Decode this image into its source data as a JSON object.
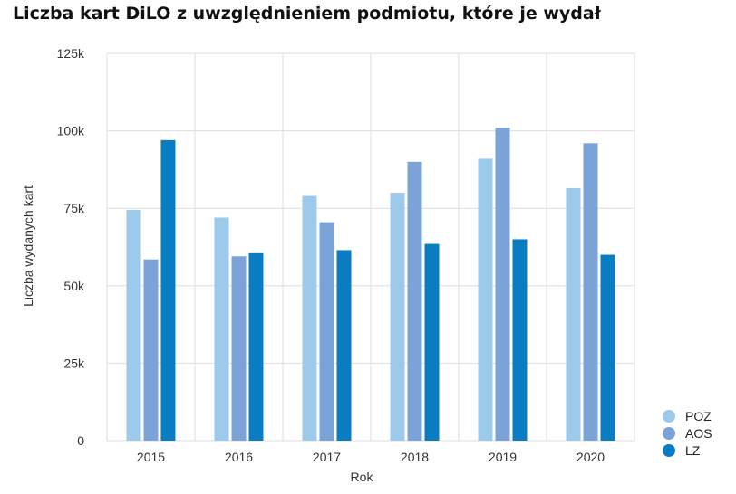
{
  "chart_data": {
    "type": "bar",
    "title": "Liczba kart DiLO z uwzględnieniem podmiotu, które je wydał",
    "xlabel": "Rok",
    "ylabel": "Liczba wydanych kart",
    "categories": [
      "2015",
      "2016",
      "2017",
      "2018",
      "2019",
      "2020"
    ],
    "ylim": [
      0,
      125000
    ],
    "yticks": [
      0,
      25000,
      50000,
      75000,
      100000,
      125000
    ],
    "ytick_labels": [
      "0",
      "25k",
      "50k",
      "75k",
      "100k",
      "125k"
    ],
    "grid": "vertical and horizontal",
    "legend_position": "bottom-right",
    "series": [
      {
        "name": "POZ",
        "color": "#9dcaea",
        "values": [
          74500,
          72000,
          79000,
          80000,
          91000,
          81500
        ]
      },
      {
        "name": "AOS",
        "color": "#7ba3d8",
        "values": [
          58500,
          59500,
          70500,
          90000,
          101000,
          96000
        ]
      },
      {
        "name": "LZ",
        "color": "#0a7cc1",
        "values": [
          97000,
          60500,
          61500,
          63500,
          65000,
          60000
        ]
      }
    ]
  }
}
